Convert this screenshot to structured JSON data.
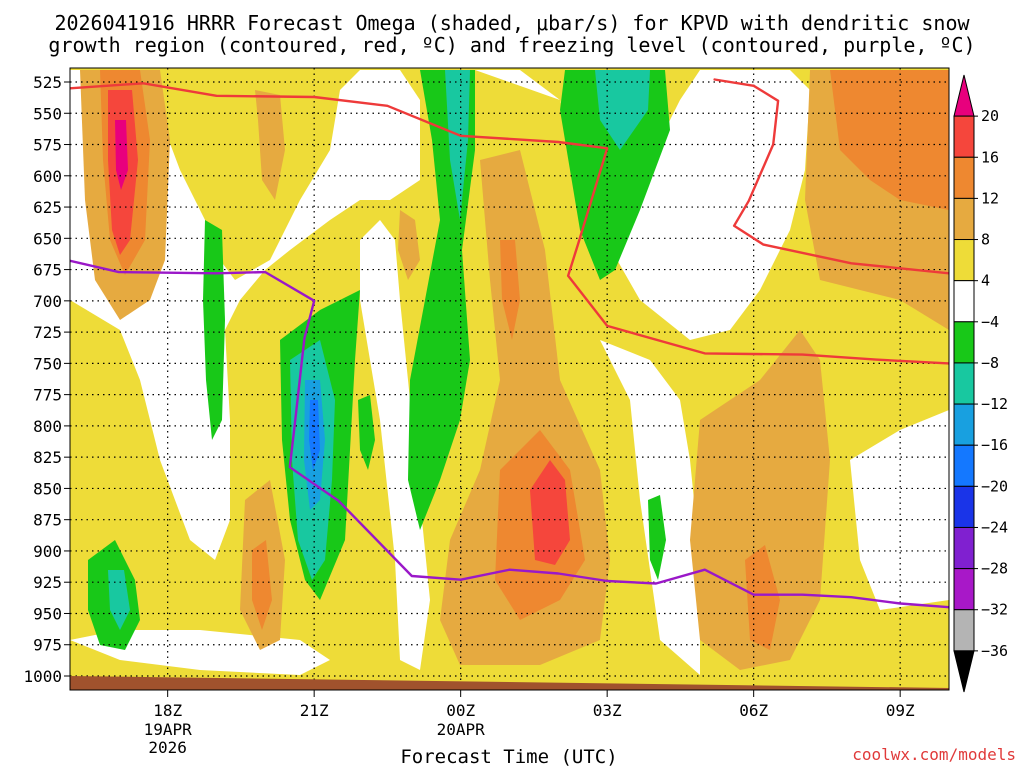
{
  "title_line1": "2026041916 HRRR Forecast Omega (shaded, μbar/s) for KPVD with dendritic snow",
  "title_line2": "growth region (contoured, red, ºC) and freezing level (contoured, purple, ºC)",
  "credit": "coolwx.com/models",
  "chart_data": {
    "type": "heatmap",
    "title": "2026041916 HRRR Forecast Omega (shaded, μbar/s) for KPVD with dendritic snow growth region (contoured, red, ºC) and freezing level (contoured, purple, ºC)",
    "xlabel": "Forecast Time (UTC)",
    "ylabel": "",
    "y_ticks": [
      "525",
      "550",
      "575",
      "600",
      "625",
      "650",
      "675",
      "700",
      "725",
      "750",
      "775",
      "800",
      "825",
      "850",
      "875",
      "900",
      "925",
      "950",
      "975",
      "1000"
    ],
    "y_range": [
      525,
      1000
    ],
    "x_ticks": [
      {
        "label": "18Z",
        "sub1": "19APR",
        "sub2": "2026"
      },
      {
        "label": "21Z",
        "sub1": "",
        "sub2": ""
      },
      {
        "label": "00Z",
        "sub1": "20APR",
        "sub2": ""
      },
      {
        "label": "03Z",
        "sub1": "",
        "sub2": ""
      },
      {
        "label": "06Z",
        "sub1": "",
        "sub2": ""
      },
      {
        "label": "09Z",
        "sub1": "",
        "sub2": ""
      }
    ],
    "x_tick_hours": [
      2,
      5,
      8,
      11,
      14,
      17
    ],
    "x_range": [
      0,
      18
    ],
    "grid": true,
    "colorbar": {
      "labels": [
        "20",
        "16",
        "12",
        "8",
        "4",
        "−4",
        "−8",
        "−12",
        "−16",
        "−20",
        "−24",
        "−28",
        "−32",
        "−36"
      ],
      "colors": [
        "#e8007d",
        "#f5463c",
        "#ee8830",
        "#e6aa40",
        "#eedc38",
        "#ffffff",
        "#18c818",
        "#18c8a0",
        "#18a0e0",
        "#1478ff",
        "#1a34e8",
        "#8020d0",
        "#a818c8",
        "#b4b4b4",
        "#000000"
      ]
    },
    "series": [
      {
        "name": "dendritic snow growth region",
        "color": "#ee3a3a",
        "contours": [
          {
            "points": [
              [
                0,
                530
              ],
              [
                1.5,
                526
              ],
              [
                3,
                536
              ],
              [
                5,
                537
              ],
              [
                6.5,
                544
              ],
              [
                8,
                568
              ],
              [
                10,
                573
              ],
              [
                11,
                578
              ],
              [
                10.4,
                655
              ],
              [
                10.2,
                680
              ],
              [
                11,
                720
              ],
              [
                13,
                742
              ],
              [
                15,
                743
              ],
              [
                16.5,
                747
              ],
              [
                18,
                750
              ]
            ]
          },
          {
            "points": [
              [
                13.2,
                523
              ],
              [
                14,
                528
              ],
              [
                14.5,
                540
              ],
              [
                14.4,
                575
              ],
              [
                13.9,
                620
              ],
              [
                13.6,
                640
              ],
              [
                14.2,
                655
              ],
              [
                16,
                670
              ],
              [
                18,
                678
              ]
            ]
          }
        ]
      },
      {
        "name": "freezing level",
        "color": "#9a18c8",
        "contours": [
          {
            "points": [
              [
                0,
                668
              ],
              [
                1,
                677
              ],
              [
                3,
                678
              ],
              [
                4,
                677
              ],
              [
                5,
                700
              ],
              [
                4.8,
                730
              ],
              [
                4.6,
                800
              ],
              [
                4.5,
                833
              ],
              [
                5.5,
                860
              ],
              [
                6,
                880
              ],
              [
                7,
                920
              ],
              [
                8,
                923
              ],
              [
                9,
                915
              ],
              [
                10,
                918
              ],
              [
                11,
                924
              ],
              [
                12,
                926
              ],
              [
                13,
                915
              ],
              [
                14,
                935
              ],
              [
                15,
                935
              ],
              [
                16,
                937
              ],
              [
                17,
                942
              ],
              [
                18,
                945
              ]
            ]
          }
        ]
      }
    ]
  }
}
